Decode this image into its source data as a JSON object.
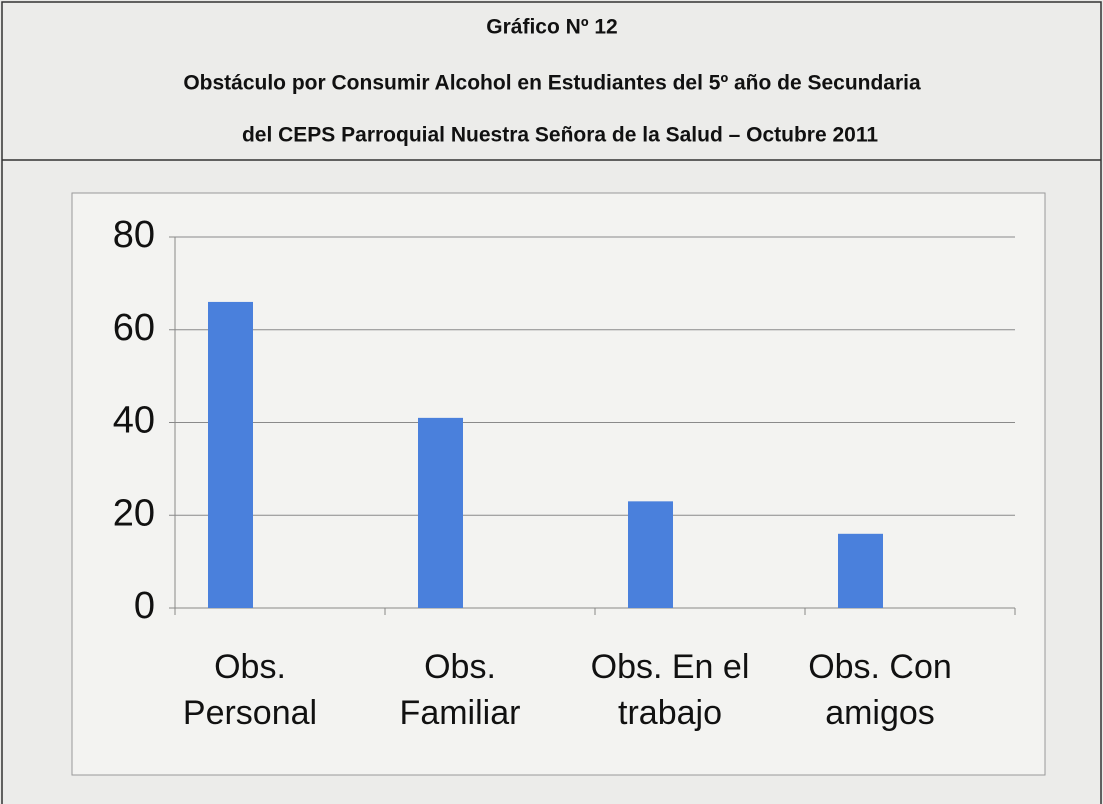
{
  "chart_data": {
    "type": "bar",
    "title": "Gráfico Nº 12",
    "subtitle": [
      "Obstáculo por  Consumir Alcohol en Estudiantes del 5º año de Secundaria",
      "del CEPS Parroquial Nuestra Señora de la Salud – Octubre 2011"
    ],
    "categories": [
      "Obs. Personal",
      "Obs. Familiar",
      "Obs. En el trabajo",
      "Obs. Con amigos"
    ],
    "values": [
      66,
      41,
      23,
      16
    ],
    "color": "#4a80dc",
    "ylim": [
      0,
      80
    ],
    "yticks": [
      0,
      20,
      40,
      60,
      80
    ],
    "grid": true
  }
}
